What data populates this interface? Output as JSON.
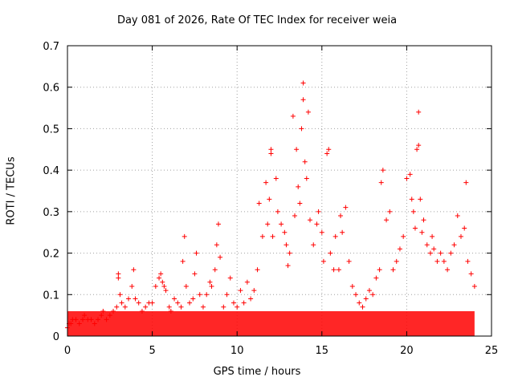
{
  "chart_data": {
    "type": "scatter",
    "title": "Day 081 of 2026, Rate Of TEC Index for receiver weia",
    "xlabel": "GPS time / hours",
    "ylabel": "ROTI / TECUs",
    "xlim": [
      0,
      25
    ],
    "ylim": [
      0,
      0.7
    ],
    "xticks": [
      0,
      5,
      10,
      15,
      20,
      25
    ],
    "yticks": [
      0,
      0.1,
      0.2,
      0.3,
      0.4,
      0.5,
      0.6,
      0.7
    ],
    "xtick_labels": [
      "0",
      "5",
      "10",
      "15",
      "20",
      "25"
    ],
    "ytick_labels": [
      "0",
      "0.1",
      "0.2",
      "0.3",
      "0.4",
      "0.5",
      "0.6",
      "0.7"
    ],
    "grid": true,
    "marker": "+",
    "color": "#ff0000",
    "x": [
      0.0,
      0.1,
      0.2,
      0.3,
      0.5,
      0.7,
      0.9,
      1.0,
      1.2,
      1.4,
      1.6,
      1.8,
      2.0,
      2.1,
      2.3,
      2.5,
      2.7,
      2.9,
      3.0,
      3.0,
      3.1,
      3.2,
      3.4,
      3.6,
      3.8,
      3.9,
      4.0,
      4.2,
      4.4,
      4.6,
      4.8,
      5.0,
      5.2,
      5.4,
      5.5,
      5.6,
      5.7,
      5.8,
      6.0,
      6.1,
      6.3,
      6.5,
      6.7,
      6.8,
      6.9,
      7.0,
      7.2,
      7.4,
      7.5,
      7.6,
      7.8,
      8.0,
      8.2,
      8.4,
      8.5,
      8.7,
      8.8,
      8.9,
      9.0,
      9.2,
      9.4,
      9.6,
      9.8,
      10.0,
      10.2,
      10.4,
      10.6,
      10.8,
      11.0,
      11.2,
      11.3,
      11.5,
      11.7,
      11.8,
      11.9,
      12.0,
      12.0,
      12.1,
      12.3,
      12.4,
      12.6,
      12.8,
      12.9,
      13.0,
      13.1,
      13.3,
      13.4,
      13.5,
      13.6,
      13.7,
      13.8,
      13.9,
      13.9,
      14.0,
      14.1,
      14.2,
      14.3,
      14.5,
      14.7,
      14.8,
      15.0,
      15.1,
      15.3,
      15.4,
      15.5,
      15.7,
      15.8,
      16.0,
      16.1,
      16.2,
      16.4,
      16.6,
      16.8,
      17.0,
      17.2,
      17.4,
      17.6,
      17.8,
      18.0,
      18.2,
      18.4,
      18.5,
      18.6,
      18.8,
      19.0,
      19.2,
      19.4,
      19.6,
      19.8,
      20.0,
      20.2,
      20.3,
      20.4,
      20.5,
      20.6,
      20.7,
      20.7,
      20.8,
      20.9,
      21.0,
      21.2,
      21.4,
      21.5,
      21.6,
      21.8,
      22.0,
      22.2,
      22.4,
      22.6,
      22.8,
      23.0,
      23.2,
      23.4,
      23.5,
      23.6,
      23.8,
      24.0
    ],
    "y": [
      0.02,
      0.03,
      0.03,
      0.04,
      0.04,
      0.03,
      0.04,
      0.05,
      0.04,
      0.04,
      0.03,
      0.04,
      0.05,
      0.06,
      0.04,
      0.05,
      0.06,
      0.07,
      0.14,
      0.15,
      0.1,
      0.08,
      0.07,
      0.09,
      0.12,
      0.16,
      0.09,
      0.08,
      0.06,
      0.07,
      0.08,
      0.08,
      0.12,
      0.14,
      0.15,
      0.13,
      0.12,
      0.11,
      0.07,
      0.06,
      0.09,
      0.08,
      0.07,
      0.18,
      0.24,
      0.12,
      0.08,
      0.09,
      0.15,
      0.2,
      0.1,
      0.07,
      0.1,
      0.13,
      0.12,
      0.16,
      0.22,
      0.27,
      0.19,
      0.07,
      0.1,
      0.14,
      0.08,
      0.07,
      0.11,
      0.08,
      0.13,
      0.09,
      0.11,
      0.16,
      0.32,
      0.24,
      0.37,
      0.27,
      0.33,
      0.44,
      0.45,
      0.24,
      0.38,
      0.3,
      0.27,
      0.25,
      0.22,
      0.17,
      0.2,
      0.53,
      0.29,
      0.45,
      0.36,
      0.32,
      0.5,
      0.61,
      0.57,
      0.42,
      0.38,
      0.54,
      0.28,
      0.22,
      0.27,
      0.3,
      0.25,
      0.18,
      0.44,
      0.45,
      0.2,
      0.16,
      0.24,
      0.16,
      0.29,
      0.25,
      0.31,
      0.18,
      0.12,
      0.1,
      0.08,
      0.07,
      0.09,
      0.11,
      0.1,
      0.14,
      0.16,
      0.37,
      0.4,
      0.28,
      0.3,
      0.16,
      0.18,
      0.21,
      0.24,
      0.38,
      0.39,
      0.33,
      0.3,
      0.26,
      0.45,
      0.54,
      0.46,
      0.33,
      0.25,
      0.28,
      0.22,
      0.2,
      0.24,
      0.21,
      0.18,
      0.2,
      0.18,
      0.16,
      0.2,
      0.22,
      0.29,
      0.24,
      0.26,
      0.37,
      0.18,
      0.15,
      0.12
    ],
    "baseline_band": {
      "x": [
        0.0,
        24.0
      ],
      "y": [
        0.0,
        0.06
      ]
    }
  }
}
